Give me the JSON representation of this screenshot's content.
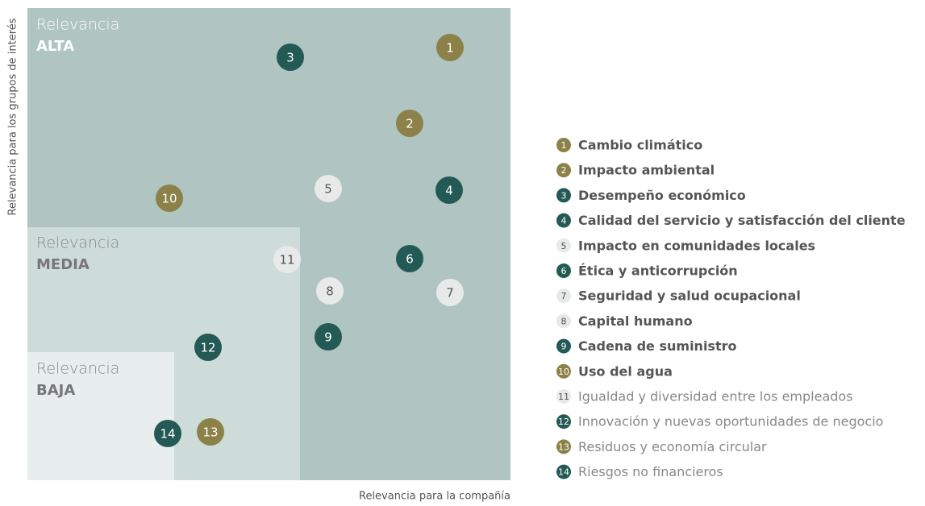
{
  "y_axis_label": "Relevancia para los grupos de interés",
  "x_axis_label": "Relevancia para la compañía",
  "zones": [
    {
      "prefix": "Relevancia",
      "level": "ALTA",
      "color": "#b0c4c2"
    },
    {
      "prefix": "Relevancia",
      "level": "MEDIA",
      "color": "#cddbd9"
    },
    {
      "prefix": "Relevancia",
      "level": "BAJA",
      "color": "#e8eeed"
    }
  ],
  "items": [
    {
      "number": "1",
      "label": "Cambio climático",
      "color": "#8c8249"
    },
    {
      "number": "2",
      "label": "Impacto ambiental",
      "color": "#8c8249"
    },
    {
      "number": "3",
      "label": "Desempeño económico",
      "color": "#245a55"
    },
    {
      "number": "4",
      "label": "Calidad del servicio y satisfacción del cliente",
      "color": "#245a55"
    },
    {
      "number": "5",
      "label": "Impacto en comunidades locales",
      "color": "#e8eaea"
    },
    {
      "number": "6",
      "label": "Ética y anticorrupción",
      "color": "#245a55"
    },
    {
      "number": "7",
      "label": "Seguridad y salud ocupacional",
      "color": "#e8eaea"
    },
    {
      "number": "8",
      "label": "Capital humano",
      "color": "#e8eaea"
    },
    {
      "number": "9",
      "label": "Cadena de suministro",
      "color": "#245a55"
    },
    {
      "number": "10",
      "label": "Uso del agua",
      "color": "#8c8249"
    },
    {
      "number": "11",
      "label": "Igualdad y diversidad entre los empleados",
      "color": "#e8eaea"
    },
    {
      "number": "12",
      "label": "Innovación y nuevas oportunidades de negocio",
      "color": "#245a55"
    },
    {
      "number": "13",
      "label": "Residuos y economía circular",
      "color": "#8c8249"
    },
    {
      "number": "14",
      "label": "Riesgos no financieros",
      "color": "#245a55"
    }
  ]
}
